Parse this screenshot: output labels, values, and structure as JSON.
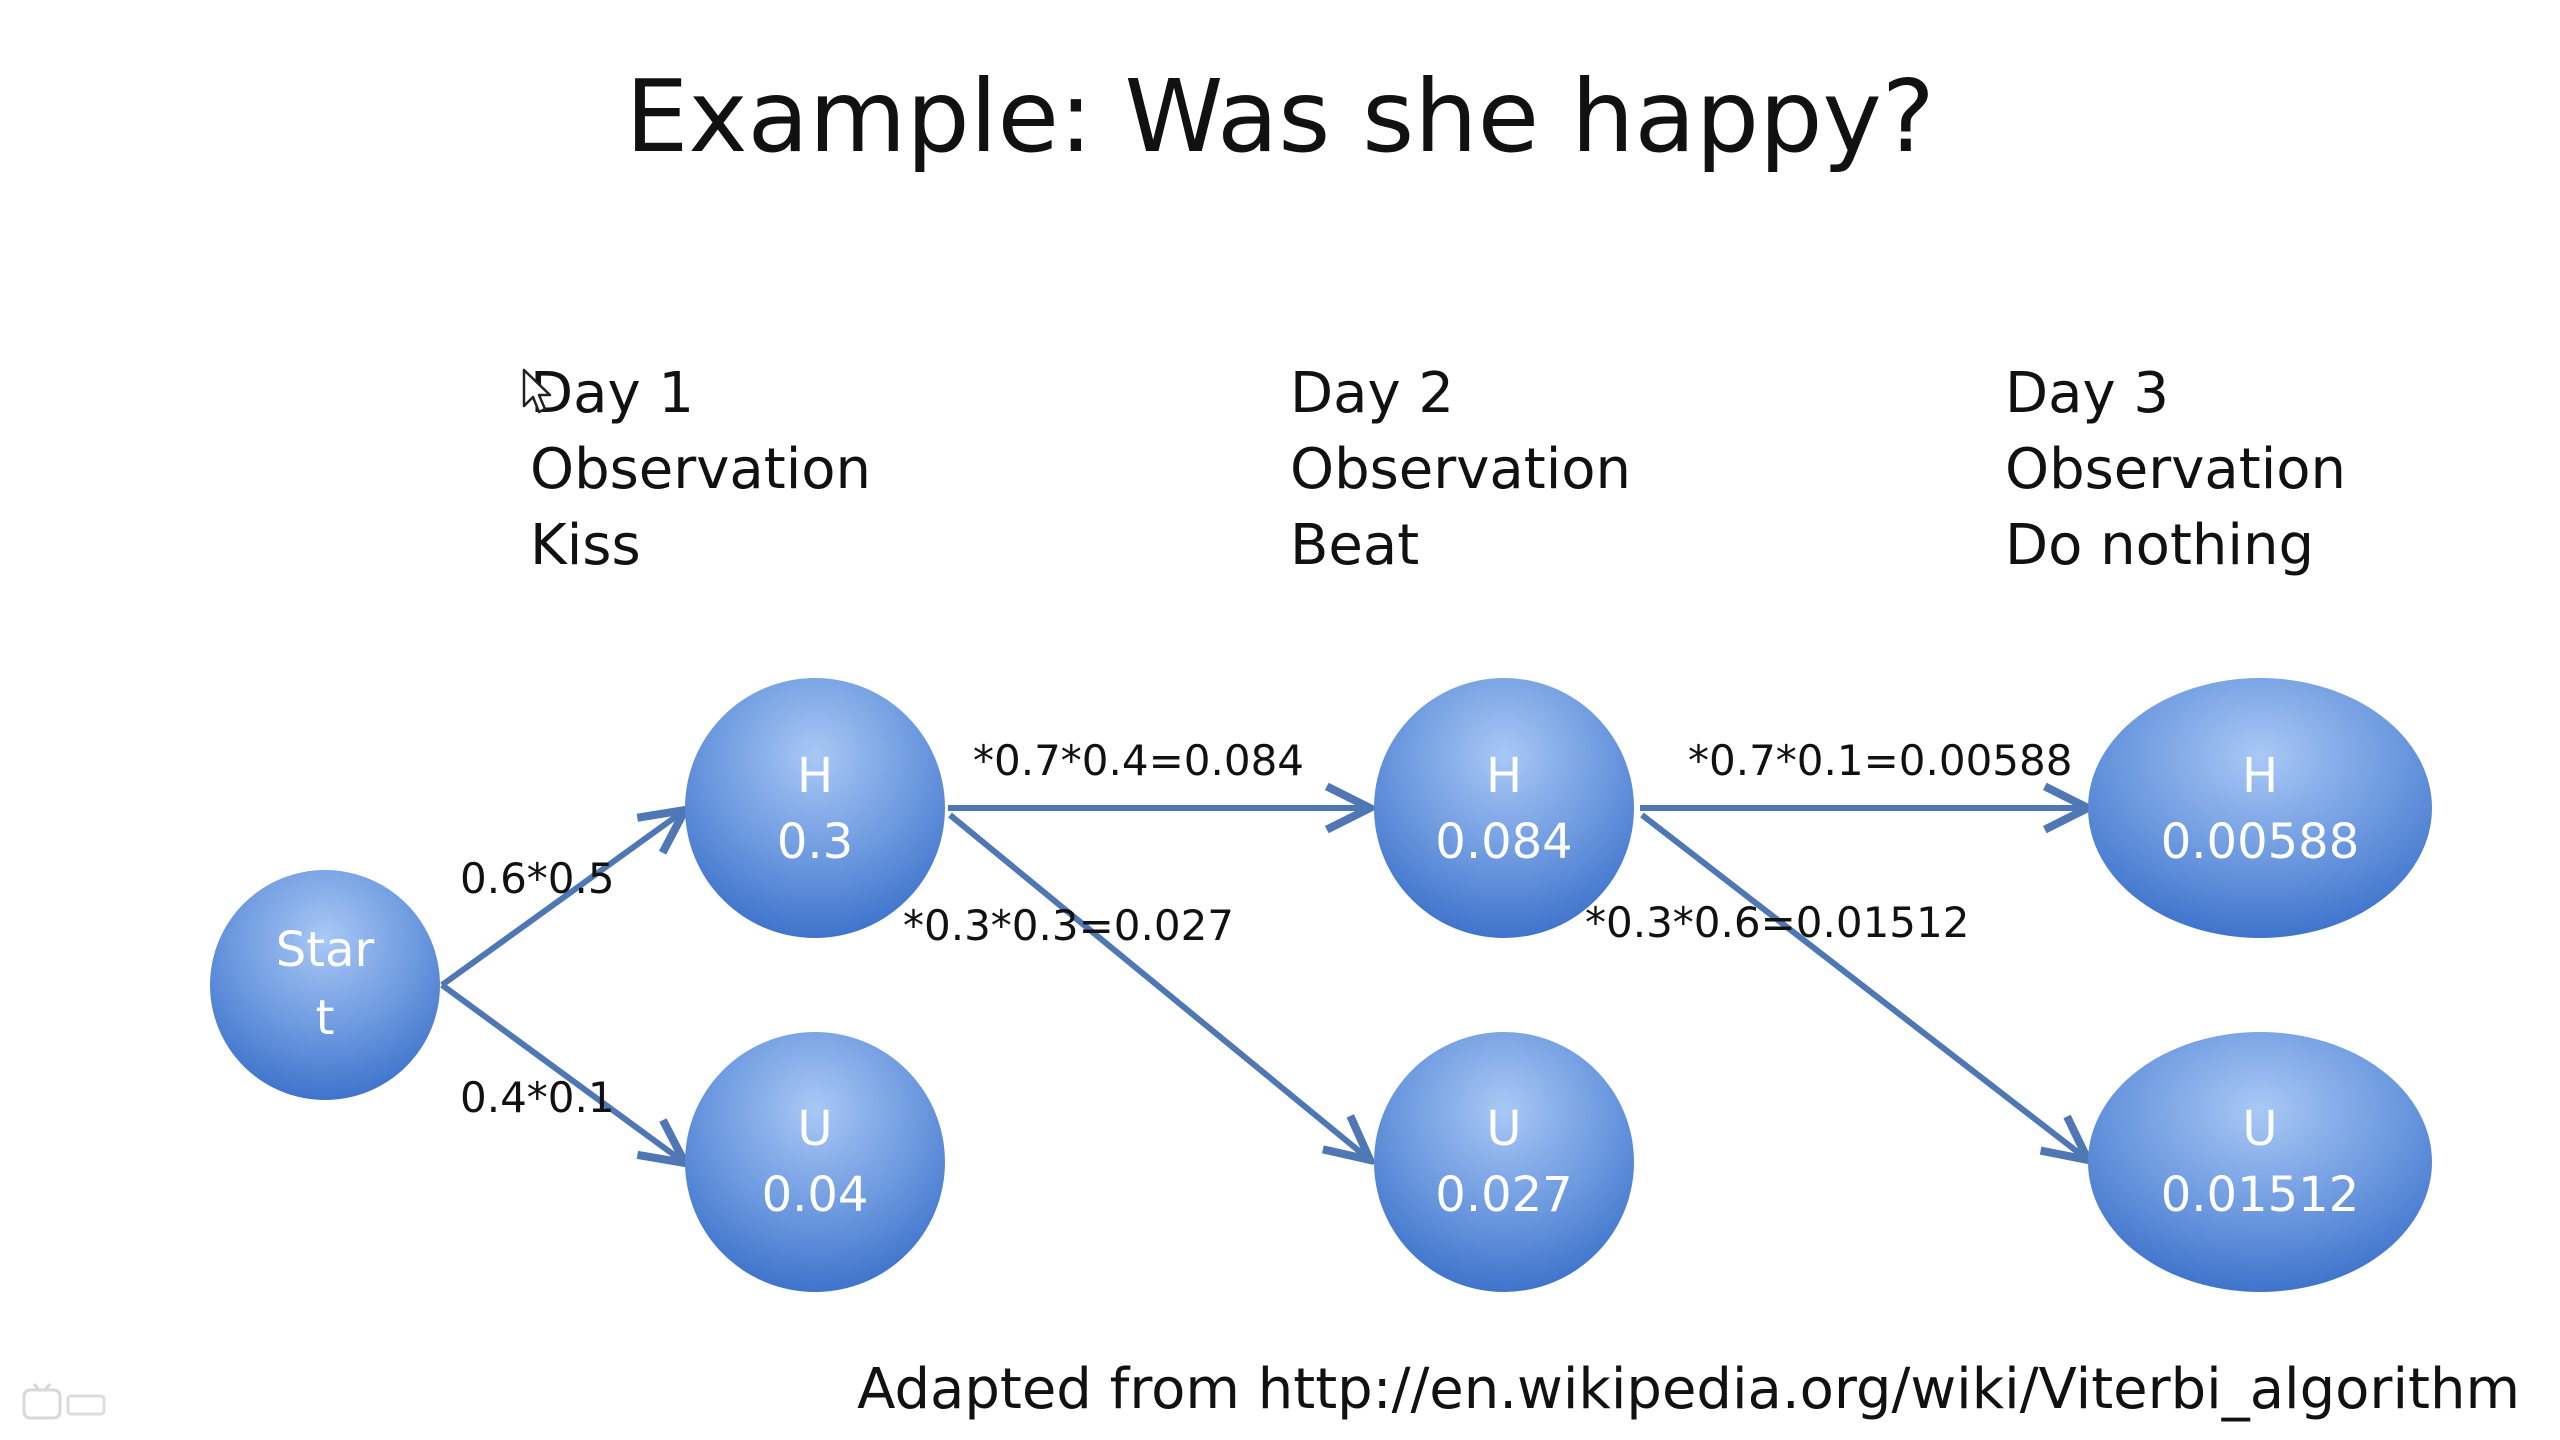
{
  "title": "Example: Was she happy?",
  "days": [
    {
      "day": "Day 1",
      "label": "Observation",
      "observation": "Kiss"
    },
    {
      "day": "Day 2",
      "label": "Observation",
      "observation": "Beat"
    },
    {
      "day": "Day 3",
      "label": "Observation",
      "observation": "Do nothing"
    }
  ],
  "nodes": {
    "start": {
      "line1": "Star",
      "line2": "t"
    },
    "h1": {
      "state": "H",
      "value": "0.3"
    },
    "u1": {
      "state": "U",
      "value": "0.04"
    },
    "h2": {
      "state": "H",
      "value": "0.084"
    },
    "u2": {
      "state": "U",
      "value": "0.027"
    },
    "h3": {
      "state": "H",
      "value": "0.00588"
    },
    "u3": {
      "state": "U",
      "value": "0.01512"
    }
  },
  "edges": {
    "start_h1": "0.6*0.5",
    "start_u1": "0.4*0.1",
    "h1_h2": "*0.7*0.4=0.084",
    "h1_u2": "*0.3*0.3=0.027",
    "h2_h3": "*0.7*0.1=0.00588",
    "h2_u3": "*0.3*0.6=0.01512"
  },
  "credit": "Adapted from http://en.wikipedia.org/wiki/Viterbi_algorithm",
  "colors": {
    "node_light": "#8fb6ee",
    "node_dark": "#3f74cc",
    "edge": "#4f77b4",
    "text": "#111111"
  },
  "icons": {
    "cursor": "mouse-pointer-icon",
    "watermark": "bilibili-watermark-icon"
  }
}
